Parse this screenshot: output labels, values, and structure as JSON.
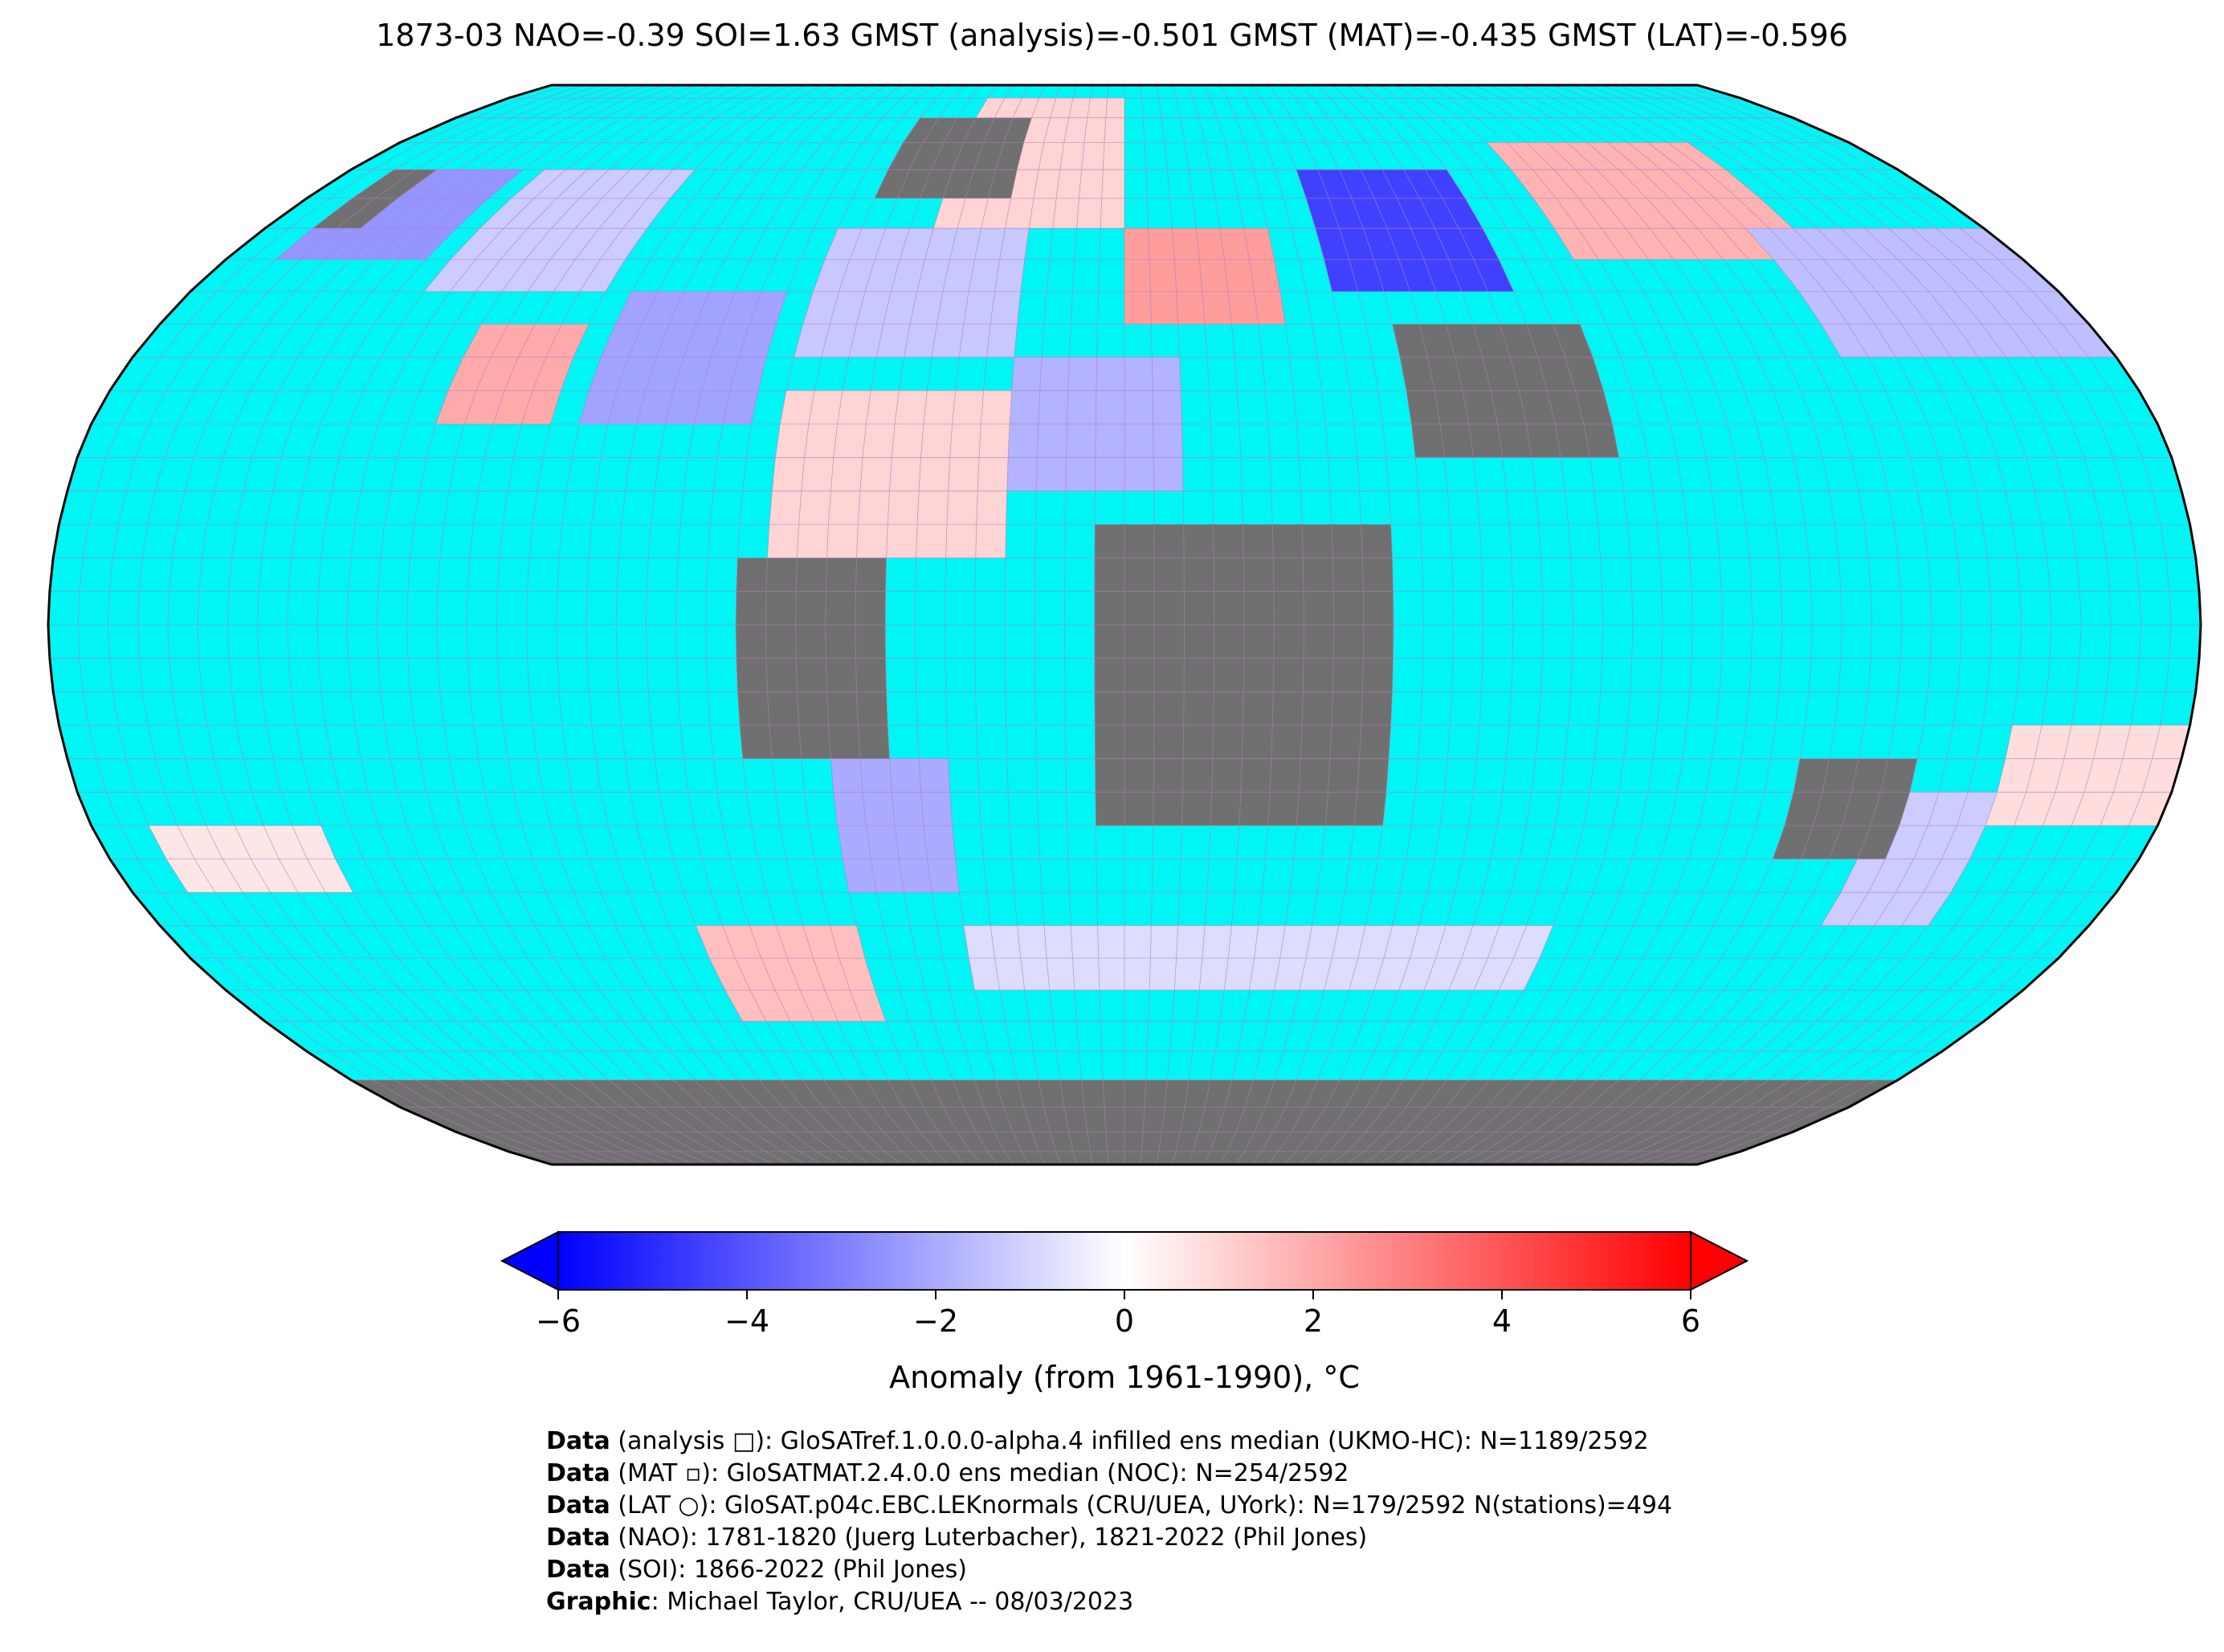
{
  "title": "1873-03 NAO=-0.39 SOI=1.63 GMST (analysis)=-0.501 GMST (MAT)=-0.435 GMST (LAT)=-0.596",
  "colors": {
    "ocean_missing": "#00f5f5",
    "land_missing": "#707070",
    "grid_line": "#b57cc0",
    "coast": "#000000",
    "cmap_low": "#0000ff",
    "cmap_mid": "#ffffff",
    "cmap_high": "#ff0000"
  },
  "colorbar": {
    "label": "Anomaly (from 1961-1990), °C",
    "range": [
      -6,
      6
    ],
    "ticks": [
      -6,
      -4,
      -2,
      0,
      2,
      4,
      6
    ],
    "tick_labels": [
      "−6",
      "−4",
      "−2",
      "0",
      "2",
      "4",
      "6"
    ],
    "extend": "both"
  },
  "map": {
    "projection": "Robinson",
    "grid_resolution_deg": 5,
    "regions": [
      {
        "lon": [
          -170,
          -140
        ],
        "lat": [
          55,
          70
        ],
        "anomaly": -2.5
      },
      {
        "lon": [
          -135,
          -100
        ],
        "lat": [
          50,
          70
        ],
        "anomaly": -1.2
      },
      {
        "lon": [
          -120,
          -100
        ],
        "lat": [
          30,
          45
        ],
        "anomaly": 2.0
      },
      {
        "lon": [
          -95,
          -65
        ],
        "lat": [
          30,
          50
        ],
        "anomaly": -2.2
      },
      {
        "lon": [
          -60,
          -20
        ],
        "lat": [
          40,
          60
        ],
        "anomaly": -1.3
      },
      {
        "lon": [
          -40,
          0
        ],
        "lat": [
          60,
          85
        ],
        "anomaly": 1.0
      },
      {
        "lon": [
          -60,
          -20
        ],
        "lat": [
          10,
          35
        ],
        "anomaly": 1.0
      },
      {
        "lon": [
          -20,
          10
        ],
        "lat": [
          20,
          40
        ],
        "anomaly": -1.8
      },
      {
        "lon": [
          0,
          30
        ],
        "lat": [
          45,
          60
        ],
        "anomaly": 2.3
      },
      {
        "lon": [
          40,
          75
        ],
        "lat": [
          50,
          70
        ],
        "anomaly": -4.5
      },
      {
        "lon": [
          90,
          140
        ],
        "lat": [
          55,
          75
        ],
        "anomaly": 1.8
      },
      {
        "lon": [
          130,
          180
        ],
        "lat": [
          40,
          60
        ],
        "anomaly": -1.5
      },
      {
        "lon": [
          -50,
          -30
        ],
        "lat": [
          -40,
          -20
        ],
        "anomaly": -2.0
      },
      {
        "lon": [
          -80,
          -50
        ],
        "lat": [
          -60,
          -45
        ],
        "anomaly": 1.5
      },
      {
        "lon": [
          -170,
          -140
        ],
        "lat": [
          -40,
          -30
        ],
        "anomaly": 0.6
      },
      {
        "lon": [
          -30,
          80
        ],
        "lat": [
          -55,
          -45
        ],
        "anomaly": -0.8
      },
      {
        "lon": [
          130,
          150
        ],
        "lat": [
          -45,
          -25
        ],
        "anomaly": -1.2
      },
      {
        "lon": [
          150,
          180
        ],
        "lat": [
          -30,
          -15
        ],
        "anomaly": 0.8
      }
    ],
    "missing_land": [
      {
        "lon": [
          -65,
          -40
        ],
        "lat": [
          -20,
          10
        ]
      },
      {
        "lon": [
          -5,
          45
        ],
        "lat": [
          -30,
          15
        ]
      },
      {
        "lon": [
          50,
          85
        ],
        "lat": [
          25,
          45
        ]
      },
      {
        "lon": [
          115,
          135
        ],
        "lat": [
          -35,
          -20
        ]
      },
      {
        "lon": [
          -180,
          180
        ],
        "lat": [
          -90,
          -70
        ]
      },
      {
        "lon": [
          -55,
          -25
        ],
        "lat": [
          65,
          80
        ]
      },
      {
        "lon": [
          -170,
          -160
        ],
        "lat": [
          60,
          70
        ]
      }
    ]
  },
  "credits": [
    {
      "bold": "Data",
      "text": " (analysis □): GloSATref.1.0.0.0-alpha.4 infilled ens median (UKMO-HC): N=1189/2592"
    },
    {
      "bold": "Data",
      "text": " (MAT ▫): GloSATMAT.2.4.0.0 ens median (NOC): N=254/2592"
    },
    {
      "bold": "Data",
      "text": " (LAT ○): GloSAT.p04c.EBC.LEKnormals (CRU/UEA, UYork): N=179/2592 N(stations)=494"
    },
    {
      "bold": "Data",
      "text": " (NAO): 1781-1820 (Juerg Luterbacher), 1821-2022 (Phil Jones)"
    },
    {
      "bold": "Data",
      "text": " (SOI): 1866-2022 (Phil Jones)"
    },
    {
      "bold": "Graphic",
      "text": ": Michael Taylor, CRU/UEA -- 08/03/2023"
    }
  ]
}
